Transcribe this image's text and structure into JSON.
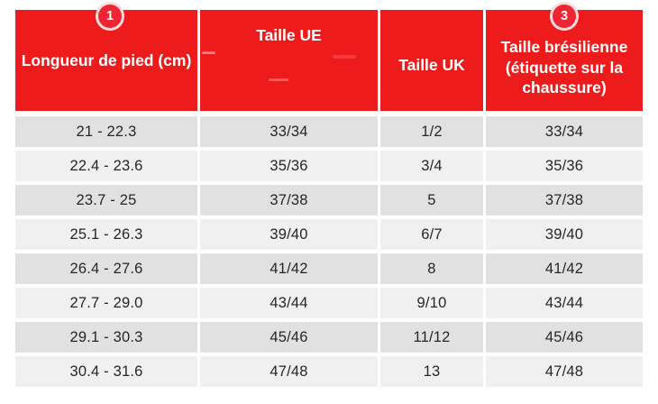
{
  "table": {
    "headers": [
      {
        "label": "Longueur de pied (cm)",
        "badge": "1"
      },
      {
        "label": "Taille UE",
        "badge": ""
      },
      {
        "label": "Taille UK",
        "badge": ""
      },
      {
        "label": "Taille brésilienne (étiquette sur la chaussure)",
        "badge": "3"
      }
    ],
    "rows": [
      [
        "21 - 22.3",
        "33/34",
        "1/2",
        "33/34"
      ],
      [
        "22.4 - 23.6",
        "35/36",
        "3/4",
        "35/36"
      ],
      [
        "23.7 - 25",
        "37/38",
        "5",
        "37/38"
      ],
      [
        "25.1 - 26.3",
        "39/40",
        "6/7",
        "39/40"
      ],
      [
        "26.4 - 27.6",
        "41/42",
        "8",
        "41/42"
      ],
      [
        "27.7 - 29.0",
        "43/44",
        "9/10",
        "43/44"
      ],
      [
        "29.1 - 30.3",
        "45/46",
        "11/12",
        "45/46"
      ],
      [
        "30.4 - 31.6",
        "47/48",
        "13",
        "47/48"
      ]
    ]
  },
  "badges": {
    "first": "1",
    "second": "3"
  },
  "colors": {
    "header_red": "#ee1b1d",
    "badge_red": "#ef2533",
    "row_odd": "#e1e1e1",
    "row_even": "#f0f0f0",
    "body_text": "#262626",
    "header_text": "#ffffff"
  },
  "chart_data": {
    "type": "table",
    "title": "Tableau de correspondance des pointures",
    "columns": [
      "Longueur de pied (cm)",
      "Taille UE",
      "Taille UK",
      "Taille brésilienne (étiquette sur la chaussure)"
    ],
    "rows": [
      [
        "21 - 22.3",
        "33/34",
        "1/2",
        "33/34"
      ],
      [
        "22.4 - 23.6",
        "35/36",
        "3/4",
        "35/36"
      ],
      [
        "23.7 - 25",
        "37/38",
        "5",
        "37/38"
      ],
      [
        "25.1 - 26.3",
        "39/40",
        "6/7",
        "39/40"
      ],
      [
        "26.4 - 27.6",
        "41/42",
        "8",
        "41/42"
      ],
      [
        "27.7 - 29.0",
        "43/44",
        "9/10",
        "43/44"
      ],
      [
        "29.1 - 30.3",
        "45/46",
        "11/12",
        "45/46"
      ],
      [
        "30.4 - 31.6",
        "47/48",
        "13",
        "47/48"
      ]
    ],
    "annotations": [
      "1",
      "3"
    ],
    "layout": "header row red, 8 data rows alternating gray/white"
  }
}
